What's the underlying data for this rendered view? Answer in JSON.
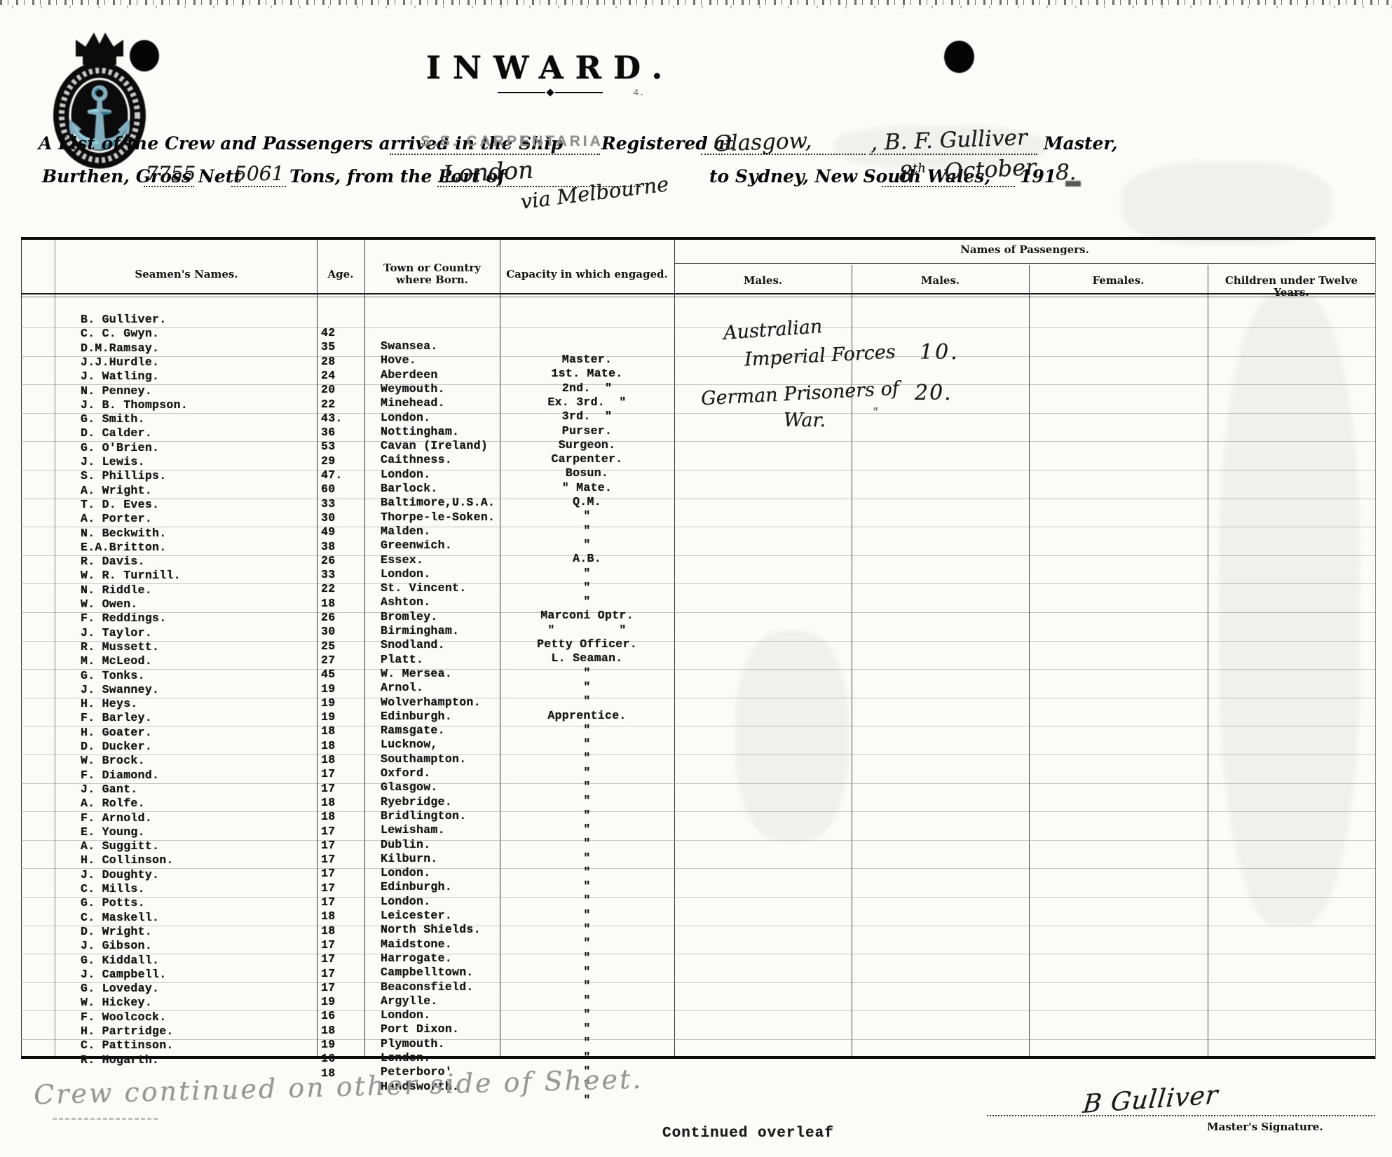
{
  "form": {
    "direction_title": "INWARD.",
    "line1_prefix": "A List of the Crew and Passengers arrived in the Ship",
    "ship_name_stamp": "S.S. CARPENTARIA.",
    "registered_at_label": "Registered at",
    "registered_at_value": "Glasgow,",
    "master_value": ", B. F. Gulliver",
    "master_label": "Master,",
    "burthen_label": "Burthen, Gross",
    "gross_tons": "7755",
    "nett_label": "Nett",
    "nett_tons": "5061",
    "tons_from_port_label": "Tons, from the Port of",
    "port_value": "London",
    "via_value": "via Melbourne",
    "destination_label": "to Sydney, New South Wales,",
    "date_day": "8",
    "date_day_suffix": "th",
    "date_month": "October",
    "year_printed": "191",
    "year_hand": "8."
  },
  "table": {
    "headers": {
      "seamen_names": "Seamen's Names.",
      "age": "Age.",
      "town_line1": "Town or Country",
      "town_line2": "where Born.",
      "capacity": "Capacity in which engaged.",
      "passengers_group": "Names of Passengers.",
      "males1": "Males.",
      "males2": "Males.",
      "females": "Females.",
      "children": "Children under Twelve Years."
    },
    "crew": [
      {
        "name": "B. Gulliver.",
        "age": "42",
        "town": "Swansea.",
        "capacity": "Master."
      },
      {
        "name": "C. C. Gwyn.",
        "age": "35",
        "town": "Hove.",
        "capacity": "1st. Mate."
      },
      {
        "name": "D.M.Ramsay.",
        "age": "28",
        "town": "Aberdeen",
        "capacity": "2nd.  \""
      },
      {
        "name": "J.J.Hurdle.",
        "age": "24",
        "town": "Weymouth.",
        "capacity": "Ex. 3rd.  \""
      },
      {
        "name": "J. Watling.",
        "age": "20",
        "town": "Minehead.",
        "capacity": "3rd.  \""
      },
      {
        "name": "N. Penney.",
        "age": "22",
        "town": "London.",
        "capacity": "Purser."
      },
      {
        "name": "J. B. Thompson.",
        "age": "43.",
        "town": "Nottingham.",
        "capacity": "Surgeon."
      },
      {
        "name": "G. Smith.",
        "age": "36",
        "town": "Cavan (Ireland)",
        "capacity": "Carpenter."
      },
      {
        "name": "D. Calder.",
        "age": "53",
        "town": "Caithness.",
        "capacity": "Bosun."
      },
      {
        "name": "G. O'Brien.",
        "age": "29",
        "town": "London.",
        "capacity": "\" Mate."
      },
      {
        "name": "J. Lewis.",
        "age": "47.",
        "town": "Barlock.",
        "capacity": "Q.M."
      },
      {
        "name": "S. Phillips.",
        "age": "60",
        "town": "Baltimore,U.S.A.",
        "capacity": "\""
      },
      {
        "name": "A. Wright.",
        "age": "33",
        "town": "Thorpe-le-Soken.",
        "capacity": "\""
      },
      {
        "name": "T. D. Eves.",
        "age": "30",
        "town": "Malden.",
        "capacity": "\""
      },
      {
        "name": "A. Porter.",
        "age": "49",
        "town": "Greenwich.",
        "capacity": "A.B."
      },
      {
        "name": "N. Beckwith.",
        "age": "38",
        "town": "Essex.",
        "capacity": "\""
      },
      {
        "name": "E.A.Britton.",
        "age": "26",
        "town": "London.",
        "capacity": "\""
      },
      {
        "name": "R. Davis.",
        "age": "33",
        "town": "St. Vincent.",
        "capacity": "\""
      },
      {
        "name": "W. R. Turnill.",
        "age": "22",
        "town": "Ashton.",
        "capacity": "Marconi Optr."
      },
      {
        "name": "N. Riddle.",
        "age": "18",
        "town": "Bromley.",
        "capacity": "\"         \""
      },
      {
        "name": "W. Owen.",
        "age": "26",
        "town": "Birmingham.",
        "capacity": "Petty Officer."
      },
      {
        "name": "F. Reddings.",
        "age": "30",
        "town": "Snodland.",
        "capacity": "L. Seaman."
      },
      {
        "name": "J. Taylor.",
        "age": "25",
        "town": "Platt.",
        "capacity": "\""
      },
      {
        "name": "R. Mussett.",
        "age": "27",
        "town": "W. Mersea.",
        "capacity": "\""
      },
      {
        "name": "M. McLeod.",
        "age": "45",
        "town": "Arnol.",
        "capacity": "\""
      },
      {
        "name": "G. Tonks.",
        "age": "19",
        "town": "Wolverhampton.",
        "capacity": "Apprentice."
      },
      {
        "name": "J. Swanney.",
        "age": "19",
        "town": "Edinburgh.",
        "capacity": "\""
      },
      {
        "name": "H. Heys.",
        "age": "19",
        "town": "Ramsgate.",
        "capacity": "\""
      },
      {
        "name": "F. Barley.",
        "age": "18",
        "town": "Lucknow,",
        "capacity": "\""
      },
      {
        "name": "H. Goater.",
        "age": "18",
        "town": "Southampton.",
        "capacity": "\""
      },
      {
        "name": "D. Ducker.",
        "age": "18",
        "town": "Oxford.",
        "capacity": "\""
      },
      {
        "name": "W. Brock.",
        "age": "17",
        "town": "Glasgow.",
        "capacity": "\""
      },
      {
        "name": "F. Diamond.",
        "age": "17",
        "town": "Ryebridge.",
        "capacity": "\""
      },
      {
        "name": "J. Gant.",
        "age": "18",
        "town": "Bridlington.",
        "capacity": "\""
      },
      {
        "name": "A. Rolfe.",
        "age": "18",
        "town": "Lewisham.",
        "capacity": "\""
      },
      {
        "name": "F. Arnold.",
        "age": "17",
        "town": "Dublin.",
        "capacity": "\""
      },
      {
        "name": "E. Young.",
        "age": "17",
        "town": "Kilburn.",
        "capacity": "\""
      },
      {
        "name": "A. Suggitt.",
        "age": "17",
        "town": "London.",
        "capacity": "\""
      },
      {
        "name": "H. Collinson.",
        "age": "17",
        "town": "Edinburgh.",
        "capacity": "\""
      },
      {
        "name": "J. Doughty.",
        "age": "17",
        "town": "London.",
        "capacity": "\""
      },
      {
        "name": "C. Mills.",
        "age": "17",
        "town": "Leicester.",
        "capacity": "\""
      },
      {
        "name": "G. Potts.",
        "age": "18",
        "town": "North Shields.",
        "capacity": "\""
      },
      {
        "name": "C. Maskell.",
        "age": "18",
        "town": "Maidstone.",
        "capacity": "\""
      },
      {
        "name": "D. Wright.",
        "age": "17",
        "town": "Harrogate.",
        "capacity": "\""
      },
      {
        "name": "J. Gibson.",
        "age": "17",
        "town": "Campbelltown.",
        "capacity": "\""
      },
      {
        "name": "G. Kiddall.",
        "age": "17",
        "town": "Beaconsfield.",
        "capacity": "\""
      },
      {
        "name": "J. Campbell.",
        "age": "17",
        "town": "Argylle.",
        "capacity": "\""
      },
      {
        "name": "G. Loveday.",
        "age": "19",
        "town": "London.",
        "capacity": "\""
      },
      {
        "name": "W. Hickey.",
        "age": "16",
        "town": "Port Dixon.",
        "capacity": "\""
      },
      {
        "name": "F. Woolcock.",
        "age": "18",
        "town": "Plymouth.",
        "capacity": "\""
      },
      {
        "name": "H. Partridge.",
        "age": "19",
        "town": "London.",
        "capacity": "\""
      },
      {
        "name": "C. Pattinson.",
        "age": "16",
        "town": "Peterboro'",
        "capacity": "\""
      },
      {
        "name": "R. Hogarth.",
        "age": "18",
        "town": "Handsworth.",
        "capacity": "\""
      }
    ]
  },
  "passengers": {
    "group1": {
      "label_line1": "Australian",
      "label_line2": "Imperial Forces",
      "count": "10."
    },
    "group2": {
      "label_line1": "German Prisoners of",
      "label_line2": "War.",
      "count": "20."
    }
  },
  "footer": {
    "pencil_note": "Crew continued on other side of Sheet.",
    "signature": "B Gulliver",
    "signature_label": "Master's Signature.",
    "continued": "Continued overleaf"
  }
}
